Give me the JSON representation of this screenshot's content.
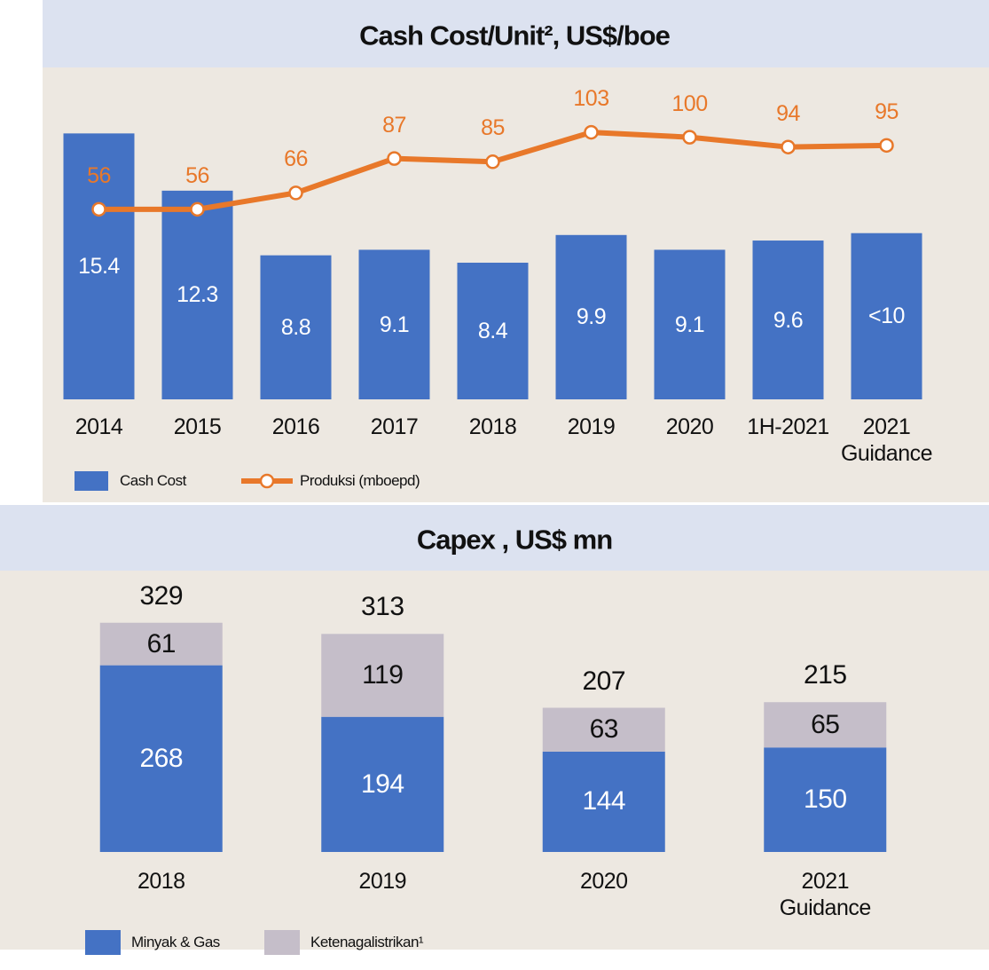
{
  "chart_data": [
    {
      "type": "bar_line",
      "title": "Cash Cost/Unit², US$/boe",
      "categories": [
        "2014",
        "2015",
        "2016",
        "2017",
        "2018",
        "2019",
        "2020",
        "1H-2021",
        "2021 Guidance"
      ],
      "series": [
        {
          "name": "Cash Cost",
          "type": "bar",
          "color": "#4472c4",
          "values": [
            15.4,
            12.3,
            8.8,
            9.1,
            8.4,
            9.9,
            9.1,
            9.6,
            10
          ],
          "value_labels": [
            "15.4",
            "12.3",
            "8.8",
            "9.1",
            "8.4",
            "9.9",
            "9.1",
            "9.6",
            "<10"
          ]
        },
        {
          "name": "Produksi (mboepd)",
          "type": "line",
          "axis": "y2",
          "color": "#e8782a",
          "values": [
            56,
            56,
            66,
            87,
            85,
            103,
            100,
            94,
            95
          ]
        }
      ],
      "ylim": [
        1,
        18.3
      ],
      "y2lim": [
        -60,
        135
      ]
    },
    {
      "type": "stacked_bar",
      "title": "Capex , US$ mn",
      "categories": [
        "2018",
        "2019",
        "2020",
        "2021 Guidance"
      ],
      "series": [
        {
          "name": "Minyak & Gas",
          "color": "#4472c4",
          "values": [
            268,
            194,
            144,
            150
          ]
        },
        {
          "name": "Ketenagalistrikan¹",
          "color": "#c5bec9",
          "values": [
            61,
            119,
            63,
            65
          ]
        }
      ],
      "totals": [
        329,
        313,
        207,
        215
      ],
      "ylim": [
        0,
        400
      ]
    }
  ]
}
